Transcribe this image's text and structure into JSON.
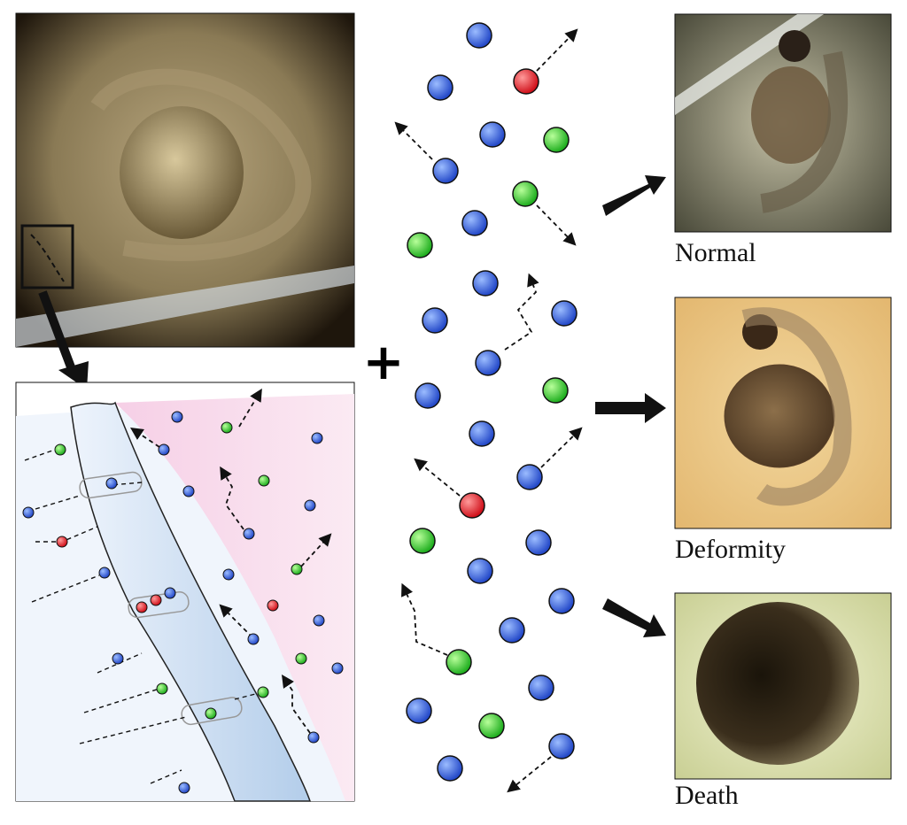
{
  "plus": "+",
  "outcomes": [
    "Normal",
    "Deformity",
    "Death"
  ]
}
